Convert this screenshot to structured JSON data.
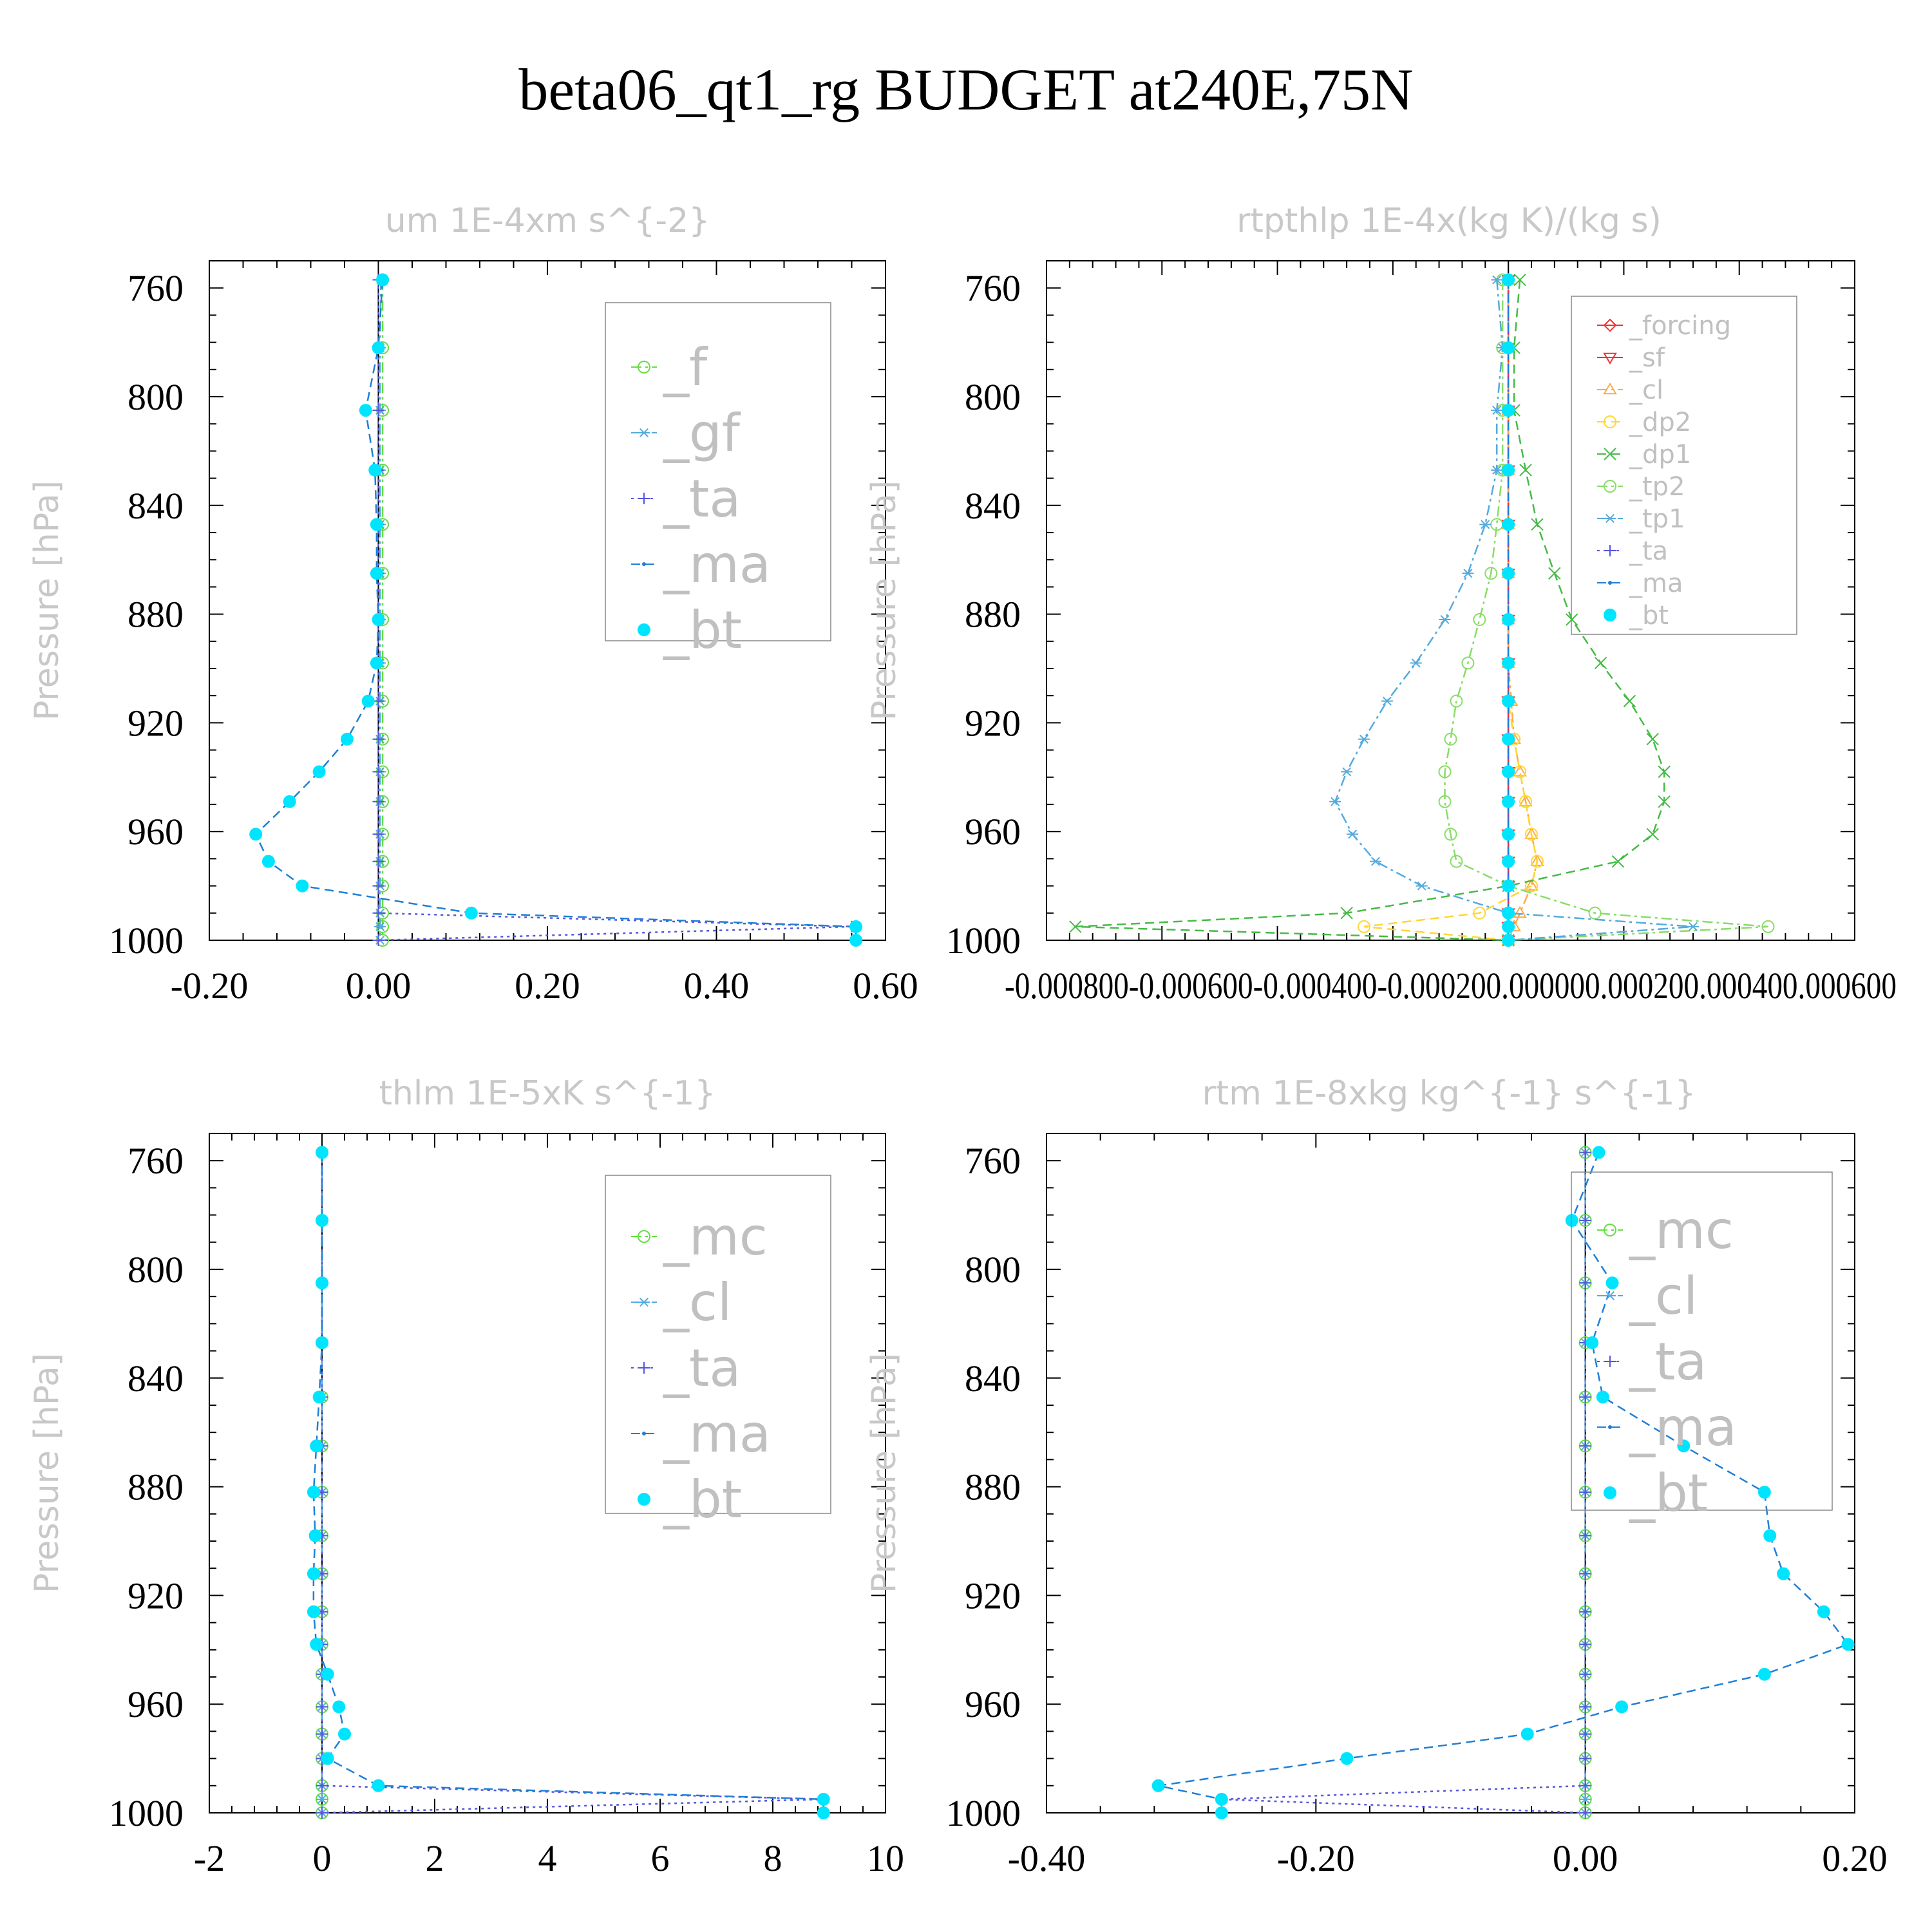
{
  "figure": {
    "title": "beta06_qt1_rg  BUDGET at240E,75N"
  },
  "chart_data": [
    {
      "type": "line",
      "title": "um   1E-4xm s^{-2}",
      "ylabel": "Pressure [hPa]",
      "xlabel": "",
      "xlim": [
        -0.2,
        0.6
      ],
      "ylim": [
        1000,
        750
      ],
      "y_reversed": true,
      "x_tick_values": [
        -0.2,
        0.0,
        0.2,
        0.4,
        0.6
      ],
      "x_tick_labels": [
        "-0.20",
        "0.00",
        "0.20",
        "0.40",
        "0.60"
      ],
      "y_tick_values": [
        760,
        800,
        840,
        880,
        920,
        960,
        1000
      ],
      "y_tick_labels": [
        "760",
        "800",
        "840",
        "880",
        "920",
        "960",
        "1000"
      ],
      "legend_position": "top-right",
      "levels": [
        757,
        782,
        805,
        827,
        847,
        865,
        882,
        898,
        912,
        926,
        938,
        949,
        961,
        971,
        980,
        990,
        995,
        1000
      ],
      "series": [
        {
          "name": "_f",
          "color": "#66dd44",
          "marker": "circle",
          "dash": "dashdot",
          "values": [
            0.005,
            0.005,
            0.005,
            0.005,
            0.005,
            0.005,
            0.005,
            0.005,
            0.005,
            0.005,
            0.005,
            0.005,
            0.005,
            0.005,
            0.005,
            0.005,
            0.005,
            0.005
          ]
        },
        {
          "name": "_gf",
          "color": "#55aadd",
          "marker": "asterisk",
          "dash": "dashdot",
          "values": [
            0.003,
            0.002,
            0.002,
            0.002,
            0.002,
            0.002,
            0.002,
            0.002,
            0.002,
            0.002,
            0.002,
            0.002,
            0.002,
            0.002,
            0.002,
            0.002,
            0.002,
            0.002
          ]
        },
        {
          "name": "_ta",
          "color": "#5555dd",
          "marker": "plus",
          "dash": "dotted",
          "values": [
            0,
            0,
            0,
            0,
            0,
            0,
            0,
            0,
            0,
            0,
            0,
            0,
            0,
            0,
            0,
            0,
            0.56,
            0
          ]
        },
        {
          "name": "_ma",
          "color": "#1f7fd6",
          "marker": "dot",
          "dash": "dashed",
          "values": [
            0.005,
            0.0,
            -0.015,
            -0.004,
            -0.002,
            -0.002,
            0.0,
            -0.002,
            -0.012,
            -0.037,
            -0.07,
            -0.105,
            -0.145,
            -0.13,
            -0.09,
            0.11,
            0.565,
            0.565
          ]
        },
        {
          "name": "_bt",
          "color": "#00e5ff",
          "marker": "filled-circle",
          "dash": "none",
          "values": [
            0.005,
            0.0,
            -0.015,
            -0.004,
            -0.002,
            -0.002,
            0.0,
            -0.002,
            -0.012,
            -0.037,
            -0.07,
            -0.105,
            -0.145,
            -0.13,
            -0.09,
            0.11,
            0.565,
            0.565
          ]
        }
      ]
    },
    {
      "type": "line",
      "title": "rtpthlp   1E-4x(kg K)/(kg s)",
      "ylabel": "Pressure [hPa]",
      "xlabel": "",
      "xlim": [
        -0.0008,
        0.0006
      ],
      "ylim": [
        1000,
        750
      ],
      "y_reversed": true,
      "x_tick_values": [
        -0.0008,
        -0.0006,
        -0.0004,
        -0.0002,
        0.0,
        0.0002,
        0.0004,
        0.0006
      ],
      "x_tick_labels": [
        "-0.000800",
        "-0.000600",
        "-0.000400",
        "-0.000200",
        "0.000000",
        "0.000200",
        "0.000400",
        "0.000600"
      ],
      "x_axis_label_text": "-0.000800-0.000600-0.000400-0.000200.000000.000200.000400.000600",
      "y_tick_values": [
        760,
        800,
        840,
        880,
        920,
        960,
        1000
      ],
      "y_tick_labels": [
        "760",
        "800",
        "840",
        "880",
        "920",
        "960",
        "1000"
      ],
      "legend_position": "top-right",
      "levels": [
        757,
        782,
        805,
        827,
        847,
        865,
        882,
        898,
        912,
        926,
        938,
        949,
        961,
        971,
        980,
        990,
        995,
        1000
      ],
      "series": [
        {
          "name": "_forcing",
          "color": "#ee3333",
          "marker": "diamond",
          "dash": "solid",
          "values": [
            0,
            0,
            0,
            0,
            0,
            0,
            0,
            0,
            0,
            0,
            0,
            0,
            0,
            0,
            0,
            0,
            0,
            0
          ]
        },
        {
          "name": "_sf",
          "color": "#ee3333",
          "marker": "triangle-down",
          "dash": "solid",
          "values": [
            0,
            0,
            0,
            0,
            0,
            0,
            0,
            0,
            0,
            0,
            0,
            0,
            0,
            0,
            0,
            0,
            0,
            0
          ]
        },
        {
          "name": "_cl",
          "color": "#ffaa44",
          "marker": "triangle-up",
          "dash": "dashdot",
          "values": [
            0,
            0,
            0,
            0,
            0,
            0,
            0,
            0,
            5e-06,
            1e-05,
            2e-05,
            3e-05,
            4e-05,
            5e-05,
            4e-05,
            2e-05,
            1e-05,
            0
          ]
        },
        {
          "name": "_dp2",
          "color": "#ffd633",
          "marker": "circle",
          "dash": "dashed",
          "values": [
            0,
            0,
            0,
            0,
            0,
            0,
            0,
            0,
            0,
            1e-05,
            2e-05,
            3e-05,
            4e-05,
            5e-05,
            4e-05,
            -5e-05,
            -0.00025,
            0
          ]
        },
        {
          "name": "_dp1",
          "color": "#44bb44",
          "marker": "x",
          "dash": "dashed",
          "values": [
            2e-05,
            1e-05,
            1e-05,
            3e-05,
            5e-05,
            8e-05,
            0.00011,
            0.00016,
            0.00021,
            0.00025,
            0.00027,
            0.00027,
            0.00025,
            0.00019,
            0.0,
            -0.00028,
            -0.00075,
            0.0
          ]
        },
        {
          "name": "_tp2",
          "color": "#88dd66",
          "marker": "circle",
          "dash": "dashdot",
          "values": [
            -1e-05,
            -1e-05,
            -1e-05,
            -1e-05,
            -2e-05,
            -3e-05,
            -5e-05,
            -7e-05,
            -9e-05,
            -0.0001,
            -0.00011,
            -0.00011,
            -0.0001,
            -9e-05,
            0.0,
            0.00015,
            0.00045,
            0.0
          ]
        },
        {
          "name": "_tp1",
          "color": "#55aadd",
          "marker": "asterisk",
          "dash": "dashdot",
          "values": [
            -2e-05,
            -1e-05,
            -2e-05,
            -2e-05,
            -4e-05,
            -7e-05,
            -0.00011,
            -0.00016,
            -0.00021,
            -0.00025,
            -0.00028,
            -0.0003,
            -0.00027,
            -0.00023,
            -0.00015,
            0.0,
            0.00032,
            0.0
          ]
        },
        {
          "name": "_ta",
          "color": "#5555dd",
          "marker": "plus",
          "dash": "dotted",
          "values": [
            0,
            0,
            0,
            0,
            0,
            0,
            0,
            0,
            0,
            0,
            0,
            0,
            0,
            0,
            0,
            0,
            0,
            0
          ]
        },
        {
          "name": "_ma",
          "color": "#1f7fd6",
          "marker": "dot",
          "dash": "dashed",
          "values": [
            0,
            0,
            0,
            0,
            0,
            0,
            0,
            0,
            0,
            0,
            0,
            0,
            0,
            0,
            0,
            0,
            0,
            0
          ]
        },
        {
          "name": "_bt",
          "color": "#00e5ff",
          "marker": "filled-circle",
          "dash": "none",
          "values": [
            0,
            0,
            0,
            0,
            0,
            0,
            0,
            0,
            0,
            0,
            0,
            0,
            0,
            0,
            0,
            0,
            0,
            0
          ]
        }
      ]
    },
    {
      "type": "line",
      "title": "thlm   1E-5xK s^{-1}",
      "ylabel": "Pressure [hPa]",
      "xlabel": "",
      "xlim": [
        -2,
        10
      ],
      "ylim": [
        1000,
        750
      ],
      "y_reversed": true,
      "x_tick_values": [
        -2,
        0,
        2,
        4,
        6,
        8,
        10
      ],
      "x_tick_labels": [
        "-2",
        "0",
        "2",
        "4",
        "6",
        "8",
        "10"
      ],
      "y_tick_values": [
        760,
        800,
        840,
        880,
        920,
        960,
        1000
      ],
      "y_tick_labels": [
        "760",
        "800",
        "840",
        "880",
        "920",
        "960",
        "1000"
      ],
      "legend_position": "top-right",
      "levels": [
        757,
        782,
        805,
        827,
        847,
        865,
        882,
        898,
        912,
        926,
        938,
        949,
        961,
        971,
        980,
        990,
        995,
        1000
      ],
      "series": [
        {
          "name": "_mc",
          "color": "#66dd44",
          "marker": "circle",
          "dash": "dashdot",
          "values": [
            0,
            0,
            0,
            0,
            0,
            0,
            0,
            0,
            0,
            0,
            0,
            0,
            0,
            0,
            0,
            0,
            0,
            0
          ]
        },
        {
          "name": "_cl",
          "color": "#55aadd",
          "marker": "asterisk",
          "dash": "dashdot",
          "values": [
            0,
            0,
            0,
            0,
            0,
            0,
            0,
            0,
            0,
            0,
            0,
            0,
            0,
            0,
            0,
            0,
            0,
            0
          ]
        },
        {
          "name": "_ta",
          "color": "#5555dd",
          "marker": "plus",
          "dash": "dotted",
          "values": [
            0,
            0,
            0,
            0,
            0,
            0,
            0,
            0,
            0,
            0,
            0,
            0,
            0,
            0,
            0,
            0,
            8.9,
            0
          ]
        },
        {
          "name": "_ma",
          "color": "#1f7fd6",
          "marker": "dot",
          "dash": "dashed",
          "values": [
            0.0,
            0.0,
            0.0,
            0.0,
            -0.05,
            -0.1,
            -0.15,
            -0.12,
            -0.15,
            -0.15,
            -0.1,
            0.1,
            0.3,
            0.4,
            0.1,
            1.0,
            8.9,
            8.9
          ]
        },
        {
          "name": "_bt",
          "color": "#00e5ff",
          "marker": "filled-circle",
          "dash": "none",
          "values": [
            0.0,
            0.0,
            0.0,
            0.0,
            -0.05,
            -0.1,
            -0.15,
            -0.12,
            -0.15,
            -0.15,
            -0.1,
            0.1,
            0.3,
            0.4,
            0.1,
            1.0,
            8.9,
            8.9
          ]
        }
      ]
    },
    {
      "type": "line",
      "title": "rtm   1E-8xkg kg^{-1} s^{-1}",
      "ylabel": "Pressure [hPa]",
      "xlabel": "",
      "xlim": [
        -0.4,
        0.2
      ],
      "ylim": [
        1000,
        750
      ],
      "y_reversed": true,
      "x_tick_values": [
        -0.4,
        -0.2,
        0.0,
        0.2
      ],
      "x_tick_labels": [
        "-0.40",
        "-0.20",
        "0.00",
        "0.20"
      ],
      "y_tick_values": [
        760,
        800,
        840,
        880,
        920,
        960,
        1000
      ],
      "y_tick_labels": [
        "760",
        "800",
        "840",
        "880",
        "920",
        "960",
        "1000"
      ],
      "legend_position": "top-right",
      "levels": [
        757,
        782,
        805,
        827,
        847,
        865,
        882,
        898,
        912,
        926,
        938,
        949,
        961,
        971,
        980,
        990,
        995,
        1000
      ],
      "series": [
        {
          "name": "_mc",
          "color": "#66dd44",
          "marker": "circle",
          "dash": "dashdot",
          "values": [
            0,
            0,
            0,
            0,
            0,
            0,
            0,
            0,
            0,
            0,
            0,
            0,
            0,
            0,
            0,
            0,
            0,
            0
          ]
        },
        {
          "name": "_cl",
          "color": "#55aadd",
          "marker": "asterisk",
          "dash": "dashdot",
          "values": [
            0,
            0,
            0,
            0,
            0,
            0,
            0,
            0,
            0,
            0,
            0,
            0,
            0,
            0,
            0,
            0,
            0,
            0
          ]
        },
        {
          "name": "_ta",
          "color": "#5555dd",
          "marker": "plus",
          "dash": "dotted",
          "values": [
            0,
            0,
            0,
            0,
            0,
            0,
            0,
            0,
            0,
            0,
            0,
            0,
            0,
            0,
            0,
            0,
            -0.27,
            0
          ]
        },
        {
          "name": "_ma",
          "color": "#1f7fd6",
          "marker": "dot",
          "dash": "dashed",
          "values": [
            0.01,
            -0.01,
            0.02,
            0.005,
            0.013,
            0.073,
            0.133,
            0.137,
            0.147,
            0.177,
            0.195,
            0.133,
            0.027,
            -0.043,
            -0.177,
            -0.317,
            -0.27,
            -0.27
          ]
        },
        {
          "name": "_bt",
          "color": "#00e5ff",
          "marker": "filled-circle",
          "dash": "none",
          "values": [
            0.01,
            -0.01,
            0.02,
            0.005,
            0.013,
            0.073,
            0.133,
            0.137,
            0.147,
            0.177,
            0.195,
            0.133,
            0.027,
            -0.043,
            -0.177,
            -0.317,
            -0.27,
            -0.27
          ]
        }
      ]
    }
  ]
}
